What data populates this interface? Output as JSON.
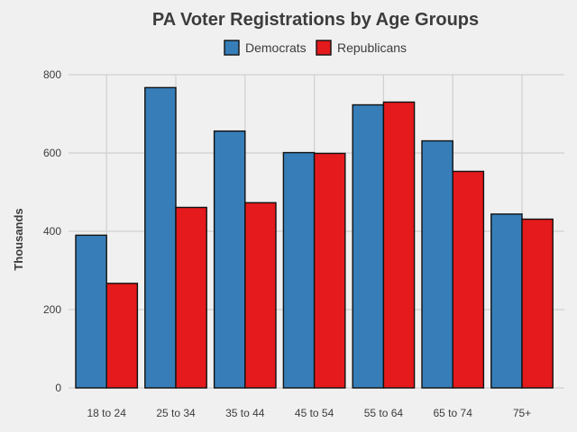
{
  "chart_data": {
    "type": "bar",
    "title": "PA Voter Registrations by Age Groups",
    "xlabel": "",
    "ylabel": "Thousands",
    "categories": [
      "18 to 24",
      "25 to 34",
      "35 to 44",
      "45 to 54",
      "55 to 64",
      "65 to 74",
      "75+"
    ],
    "series": [
      {
        "name": "Democrats",
        "color": "#377eb8",
        "values": [
          390,
          767,
          656,
          601,
          723,
          631,
          444
        ]
      },
      {
        "name": "Republicans",
        "color": "#e41a1c",
        "values": [
          267,
          461,
          473,
          599,
          730,
          553,
          431
        ]
      }
    ],
    "ylim": [
      0,
      800
    ],
    "yticks": [
      0,
      200,
      400,
      600,
      800
    ],
    "grid": true,
    "legend_position": "top"
  }
}
